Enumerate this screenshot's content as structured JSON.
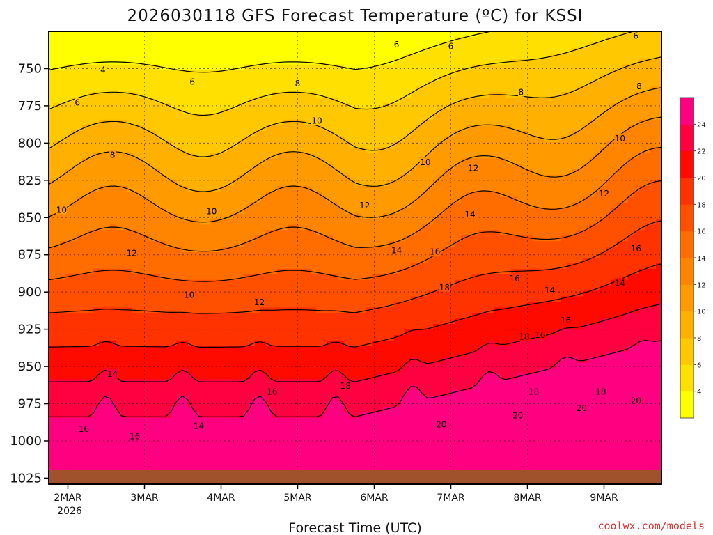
{
  "chart_data": {
    "type": "heatmap",
    "title": "2026030118 GFS Forecast Temperature (ºC) for KSSI",
    "xlabel": "Forecast Time (UTC)",
    "ylabel": "",
    "credit": "coolwx.com/models",
    "x_ticks": [
      "2MAR",
      "3MAR",
      "4MAR",
      "5MAR",
      "6MAR",
      "7MAR",
      "8MAR",
      "9MAR"
    ],
    "x_year": "2026",
    "x_range_hours": [
      -6,
      186
    ],
    "y_ticks": [
      750,
      775,
      800,
      825,
      850,
      875,
      900,
      925,
      950,
      975,
      1000,
      1025
    ],
    "y_range_hpa": [
      725,
      1029
    ],
    "surface_pressure_hpa": 1021,
    "colorbar": {
      "ticks": [
        4,
        6,
        8,
        10,
        12,
        14,
        16,
        18,
        20,
        22,
        24
      ],
      "range": [
        2,
        26
      ],
      "colors": [
        "#ffff00",
        "#ffe000",
        "#ffc800",
        "#ffb000",
        "#ff9a00",
        "#ff8400",
        "#ff6c00",
        "#ff5000",
        "#ff3300",
        "#ff0a00",
        "#ff0040",
        "#ff0080"
      ]
    },
    "contour_labels": [
      {
        "text": "4",
        "h": 11,
        "p": 751
      },
      {
        "text": "6",
        "h": 3,
        "p": 773
      },
      {
        "text": "6",
        "h": 39,
        "p": 759
      },
      {
        "text": "6",
        "h": 103,
        "p": 734
      },
      {
        "text": "6",
        "h": 120,
        "p": 735
      },
      {
        "text": "6",
        "h": 178,
        "p": 728
      },
      {
        "text": "8",
        "h": 14,
        "p": 808
      },
      {
        "text": "8",
        "h": 72,
        "p": 760
      },
      {
        "text": "8",
        "h": 142,
        "p": 766
      },
      {
        "text": "8",
        "h": 179,
        "p": 762
      },
      {
        "text": "10",
        "h": -2,
        "p": 845
      },
      {
        "text": "10",
        "h": 45,
        "p": 846
      },
      {
        "text": "10",
        "h": 78,
        "p": 785
      },
      {
        "text": "10",
        "h": 112,
        "p": 813
      },
      {
        "text": "10",
        "h": 173,
        "p": 797
      },
      {
        "text": "10",
        "h": 38,
        "p": 902
      },
      {
        "text": "12",
        "h": 20,
        "p": 874
      },
      {
        "text": "12",
        "h": 93,
        "p": 842
      },
      {
        "text": "12",
        "h": 60,
        "p": 907
      },
      {
        "text": "12",
        "h": 127,
        "p": 817
      },
      {
        "text": "12",
        "h": 168,
        "p": 834
      },
      {
        "text": "14",
        "h": 14,
        "p": 955
      },
      {
        "text": "14",
        "h": 41,
        "p": 990
      },
      {
        "text": "14",
        "h": 103,
        "p": 872
      },
      {
        "text": "14",
        "h": 126,
        "p": 848
      },
      {
        "text": "14",
        "h": 151,
        "p": 899
      },
      {
        "text": "14",
        "h": 173,
        "p": 894
      },
      {
        "text": "16",
        "h": 5,
        "p": 992
      },
      {
        "text": "16",
        "h": 21,
        "p": 997
      },
      {
        "text": "16",
        "h": 64,
        "p": 967
      },
      {
        "text": "16",
        "h": 115,
        "p": 873
      },
      {
        "text": "16",
        "h": 140,
        "p": 891
      },
      {
        "text": "16",
        "h": 148,
        "p": 929
      },
      {
        "text": "16",
        "h": 156,
        "p": 919
      },
      {
        "text": "16",
        "h": 178,
        "p": 871
      },
      {
        "text": "18",
        "h": 87,
        "p": 963
      },
      {
        "text": "18",
        "h": 118,
        "p": 897
      },
      {
        "text": "18",
        "h": 143,
        "p": 930
      },
      {
        "text": "18",
        "h": 146,
        "p": 967
      },
      {
        "text": "18",
        "h": 167,
        "p": 967
      },
      {
        "text": "20",
        "h": 117,
        "p": 989
      },
      {
        "text": "20",
        "h": 141,
        "p": 983
      },
      {
        "text": "20",
        "h": 161,
        "p": 978
      },
      {
        "text": "20",
        "h": 178,
        "p": 973
      }
    ]
  }
}
